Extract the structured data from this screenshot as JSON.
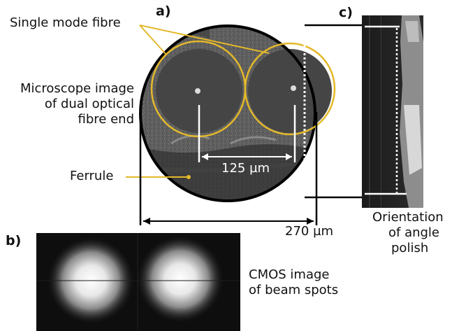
{
  "panels": {
    "a": "a)",
    "b": "b)",
    "c": "c)"
  },
  "labels": {
    "single_mode_fibre": "Single mode fibre",
    "microscope_line1": "Microscope image",
    "microscope_line2": "of dual optical",
    "microscope_line3": "fibre end",
    "ferrule": "Ferrule",
    "core_spacing": "125 µm",
    "ferrule_diameter": "270 µm",
    "orientation_line1": "Orientation",
    "orientation_line2": "of angle",
    "orientation_line3": "polish",
    "cmos_line1": "CMOS image",
    "cmos_line2": "of beam spots"
  },
  "colors": {
    "annotation": "#e3b82a",
    "dimension": "#000000"
  }
}
